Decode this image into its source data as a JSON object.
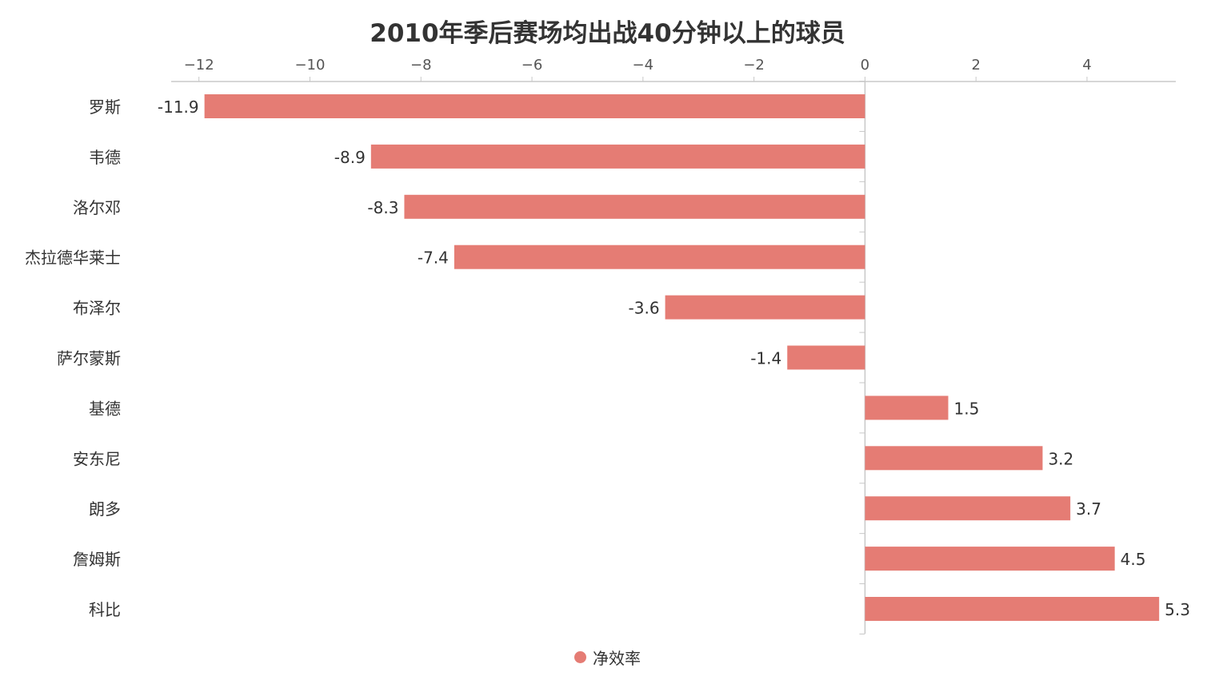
{
  "chart_data": {
    "type": "bar",
    "orientation": "horizontal",
    "title": "2010年季后赛场均出战40分钟以上的球员",
    "categories": [
      "罗斯",
      "韦德",
      "洛尔邓",
      "杰拉德华莱士",
      "布泽尔",
      "萨尔蒙斯",
      "基德",
      "安东尼",
      "朗多",
      "詹姆斯",
      "科比"
    ],
    "series": [
      {
        "name": "净效率",
        "values": [
          -11.9,
          -8.9,
          -8.3,
          -7.4,
          -3.6,
          -1.4,
          1.5,
          3.2,
          3.7,
          4.5,
          5.3
        ],
        "labels": [
          "-11.9",
          "-8.9",
          "-8.3",
          "-7.4",
          "-3.6",
          "-1.4",
          "1.5",
          "3.2",
          "3.7",
          "4.5",
          "5.3"
        ]
      }
    ],
    "x_ticks": [
      -12,
      -10,
      -8,
      -6,
      -4,
      -2,
      0,
      2,
      4
    ],
    "x_tick_labels": [
      "−12",
      "−10",
      "−8",
      "−6",
      "−4",
      "−2",
      "0",
      "2",
      "4"
    ],
    "xlim": [
      -12.5,
      5.6
    ],
    "axis_position": "top",
    "grid": false,
    "legend_position": "bottom-center",
    "colors": {
      "bar": "#e57c74",
      "axis": "#c8c8c8",
      "text": "#333333"
    }
  }
}
